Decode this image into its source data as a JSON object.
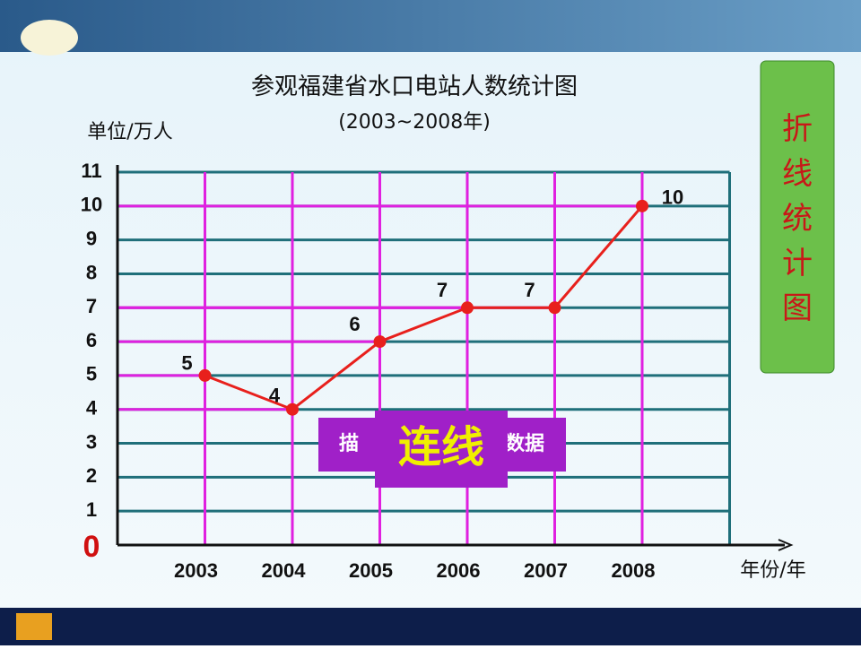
{
  "chart_data": {
    "type": "line",
    "title": "参观福建省水口电站人数统计图",
    "subtitle": "(2003~2008年)",
    "y_axis_label": "单位/万人",
    "x_axis_label": "年份/年",
    "categories": [
      "2003",
      "2004",
      "2005",
      "2006",
      "2007",
      "2008"
    ],
    "series": [
      {
        "color": "#e8201c",
        "values": [
          5,
          4,
          6,
          7,
          7,
          10
        ]
      }
    ],
    "ylim": [
      0,
      11
    ],
    "yticks": [
      0,
      1,
      2,
      3,
      4,
      5,
      6,
      7,
      8,
      9,
      10,
      11
    ],
    "grid": true,
    "grid_color": "#1f6f7a",
    "guide_color": "#e020e0",
    "side_banner": "折线统计图",
    "annotation_back": [
      "描",
      "数据"
    ],
    "annotation_front": "连线"
  }
}
